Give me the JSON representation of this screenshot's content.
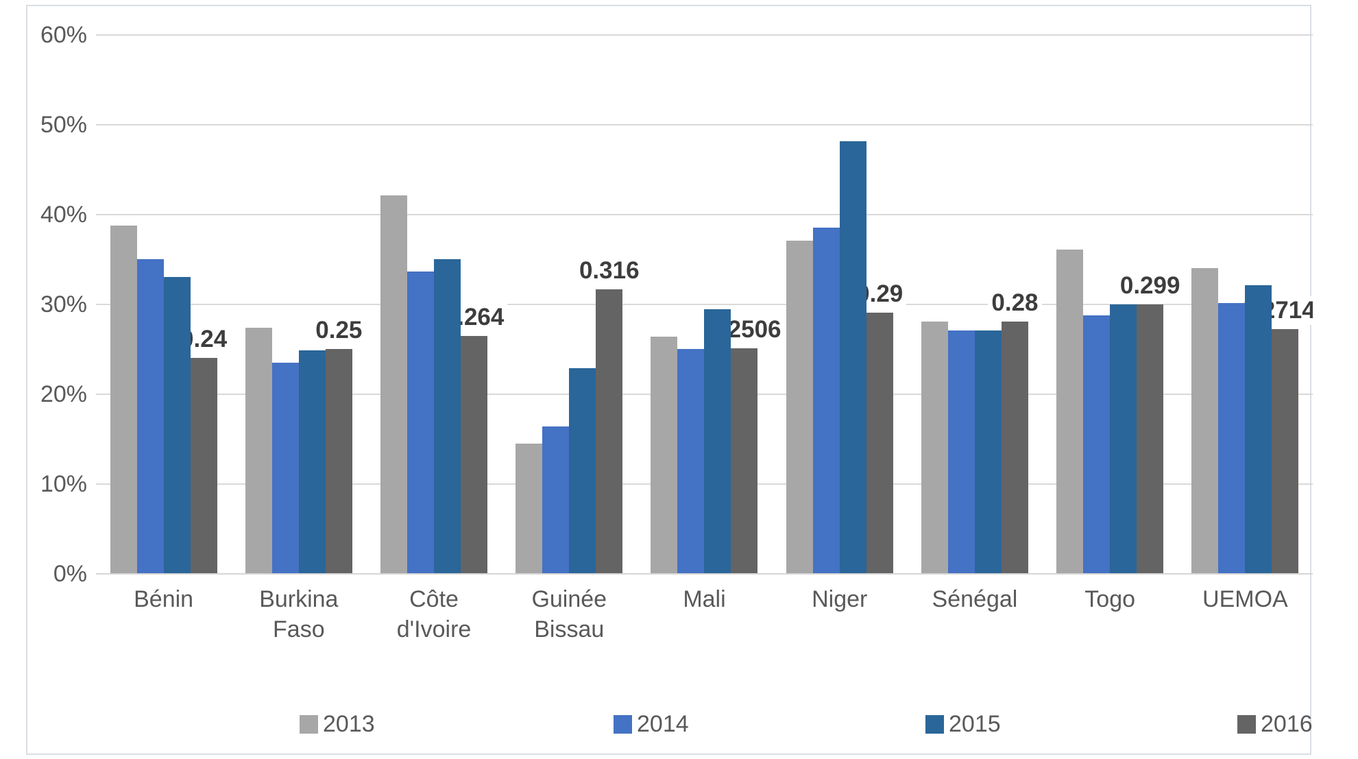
{
  "chart_data": {
    "type": "bar",
    "title": "",
    "categories": [
      "Bénin",
      "Burkina\nFaso",
      "Côte\nd'Ivoire",
      "Guinée\nBissau",
      "Mali",
      "Niger",
      "Sénégal",
      "Togo",
      "UEMOA"
    ],
    "series": [
      {
        "name": "2013",
        "color": "#a7a7a7",
        "values": [
          38.7,
          27.3,
          42.1,
          14.4,
          26.3,
          37.0,
          28.0,
          36.0,
          34.0
        ]
      },
      {
        "name": "2014",
        "color": "#4472c4",
        "values": [
          35.0,
          23.4,
          33.6,
          16.3,
          25.0,
          38.5,
          27.0,
          28.7,
          30.1
        ]
      },
      {
        "name": "2015",
        "color": "#2a6699",
        "values": [
          33.0,
          24.8,
          35.0,
          22.8,
          29.4,
          48.1,
          27.0,
          29.9,
          32.1
        ]
      },
      {
        "name": "2016",
        "color": "#646464",
        "values": [
          24.0,
          25.0,
          26.4,
          31.6,
          25.06,
          29.0,
          28.0,
          29.9,
          27.14
        ]
      }
    ],
    "data_labels_2016": [
      "0.24",
      "0.25",
      "0.264",
      "0.316",
      "0.2506",
      "0.29",
      "0.28",
      "0.299",
      "0.27143"
    ],
    "y_axis": {
      "tick_labels": [
        "60%",
        "50%",
        "40%",
        "30%",
        "20%",
        "10%",
        "0%"
      ],
      "min": 0,
      "max": 60,
      "step": 10,
      "unit": "%"
    },
    "legend": {
      "position": "bottom",
      "entries": [
        "2013",
        "2014",
        "2015",
        "2016"
      ]
    },
    "grid": "horizontal",
    "colors": {
      "gridline": "#d9d9d9",
      "axis_text": "#595959",
      "data_label_text": "#3d3d3d",
      "frame_border": "#d9dee4"
    }
  }
}
